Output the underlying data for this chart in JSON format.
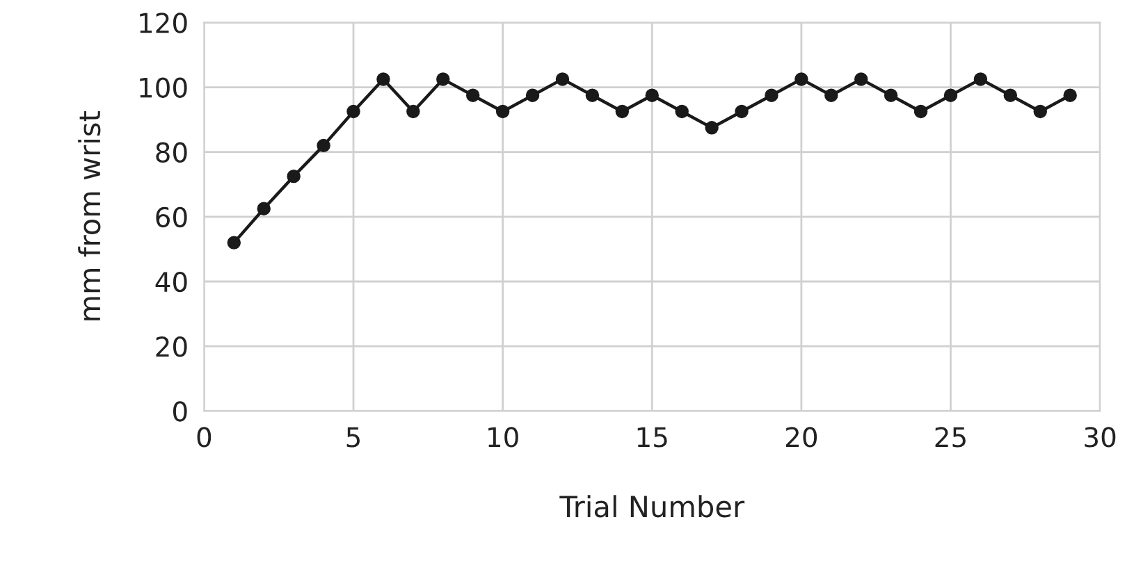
{
  "chart_data": {
    "type": "line",
    "xlabel": "Trial Number",
    "ylabel": "mm from wrist",
    "x": [
      1,
      2,
      3,
      4,
      5,
      6,
      7,
      8,
      9,
      10,
      11,
      12,
      13,
      14,
      15,
      16,
      17,
      18,
      19,
      20,
      21,
      22,
      23,
      24,
      25,
      26,
      27,
      28,
      29
    ],
    "series": [
      {
        "color": "#1a1a1a",
        "values": [
          52,
          62.5,
          72.5,
          82,
          92.5,
          102.5,
          92.5,
          102.5,
          97.5,
          92.5,
          97.5,
          102.5,
          97.5,
          92.5,
          97.5,
          92.5,
          87.5,
          92.5,
          97.5,
          102.5,
          97.5,
          102.5,
          97.5,
          92.5,
          97.5,
          102.5,
          97.5,
          92.5,
          97.5
        ]
      }
    ],
    "xlim": [
      0,
      30
    ],
    "xticks": [
      0,
      5,
      10,
      15,
      20,
      25,
      30
    ],
    "ylim": [
      0,
      120
    ],
    "yticks": [
      0,
      20,
      40,
      60,
      80,
      100,
      120
    ],
    "grid": true,
    "marker": "circle",
    "line_style": "solid"
  }
}
